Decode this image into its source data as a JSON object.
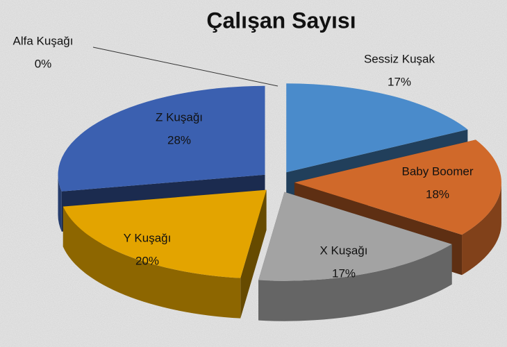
{
  "chart_data": {
    "type": "pie3d",
    "title": "Çalışan Sayısı",
    "categories": [
      "Sessiz Kuşak",
      "Baby Boomer",
      "X Kuşağı",
      "Y Kuşağı",
      "Z Kuşağı",
      "Alfa Kuşağı"
    ],
    "values": [
      17,
      18,
      17,
      20,
      28,
      0
    ],
    "value_labels": [
      "17%",
      "18%",
      "17%",
      "20%",
      "28%",
      "0%"
    ],
    "colors": [
      "#4a8bcb",
      "#d0692a",
      "#a3a3a3",
      "#e3a400",
      "#3b60b0",
      "#70ad47"
    ]
  }
}
